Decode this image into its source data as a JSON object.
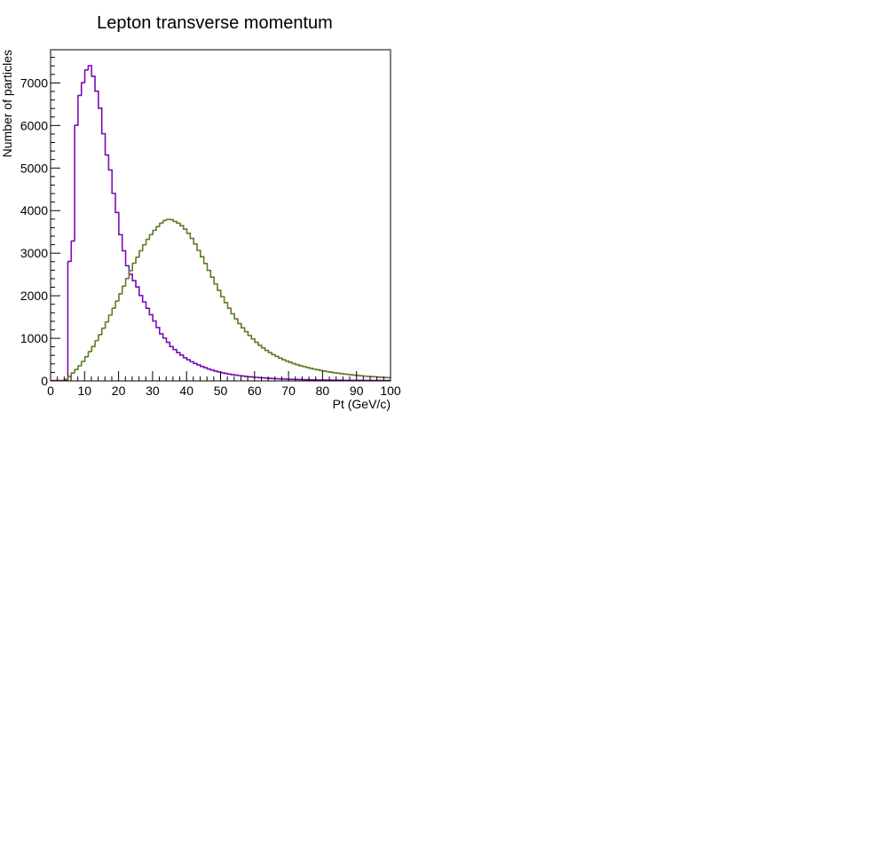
{
  "chart_data": {
    "type": "line",
    "title": "Lepton transverse momentum",
    "xlabel": "Pt (GeV/c)",
    "ylabel": "Number of particles",
    "xlim": [
      0,
      100
    ],
    "ylim": [
      0,
      7780
    ],
    "x_ticks": [
      0,
      10,
      20,
      30,
      40,
      50,
      60,
      70,
      80,
      90,
      100
    ],
    "y_ticks": [
      0,
      1000,
      2000,
      3000,
      4000,
      5000,
      6000,
      7000
    ],
    "bin_width": 1,
    "grid": false,
    "legend": "none",
    "series": [
      {
        "color": "#6a00a8",
        "color_outline": "#9a1fd0",
        "values": [
          0,
          0,
          0,
          0,
          0,
          2800,
          3280,
          6000,
          6700,
          7000,
          7300,
          7400,
          7150,
          6800,
          6400,
          5800,
          5300,
          4950,
          4400,
          3950,
          3430,
          3050,
          2700,
          2500,
          2350,
          2200,
          2000,
          1850,
          1700,
          1550,
          1400,
          1250,
          1100,
          1000,
          900,
          800,
          730,
          660,
          600,
          540,
          490,
          445,
          405,
          370,
          335,
          305,
          275,
          250,
          225,
          205,
          185,
          170,
          155,
          142,
          130,
          119,
          109,
          100,
          92,
          84,
          77,
          71,
          65,
          60,
          55,
          50,
          46,
          42,
          39,
          36,
          33,
          30,
          28,
          26,
          24,
          22,
          20,
          18,
          17,
          16,
          15,
          14,
          13,
          12,
          11,
          10,
          9,
          9,
          8,
          8,
          7,
          7,
          6,
          6,
          5,
          5,
          5,
          4,
          4,
          4
        ]
      },
      {
        "color": "#2a9a1a",
        "color_outline": "#c04030",
        "values": [
          0,
          0,
          0,
          0,
          30,
          100,
          180,
          260,
          350,
          450,
          560,
          680,
          800,
          940,
          1080,
          1230,
          1380,
          1540,
          1700,
          1870,
          2040,
          2220,
          2400,
          2580,
          2760,
          2900,
          3050,
          3190,
          3320,
          3430,
          3530,
          3620,
          3700,
          3760,
          3790,
          3780,
          3740,
          3700,
          3640,
          3560,
          3460,
          3340,
          3210,
          3060,
          2910,
          2750,
          2590,
          2430,
          2270,
          2120,
          1970,
          1830,
          1700,
          1570,
          1450,
          1340,
          1240,
          1150,
          1060,
          980,
          900,
          830,
          770,
          710,
          660,
          610,
          570,
          530,
          490,
          460,
          430,
          400,
          375,
          350,
          330,
          310,
          290,
          270,
          255,
          240,
          225,
          210,
          198,
          186,
          175,
          164,
          154,
          145,
          136,
          128,
          120,
          113,
          106,
          100,
          94,
          88,
          83,
          78,
          74,
          70
        ]
      }
    ]
  }
}
